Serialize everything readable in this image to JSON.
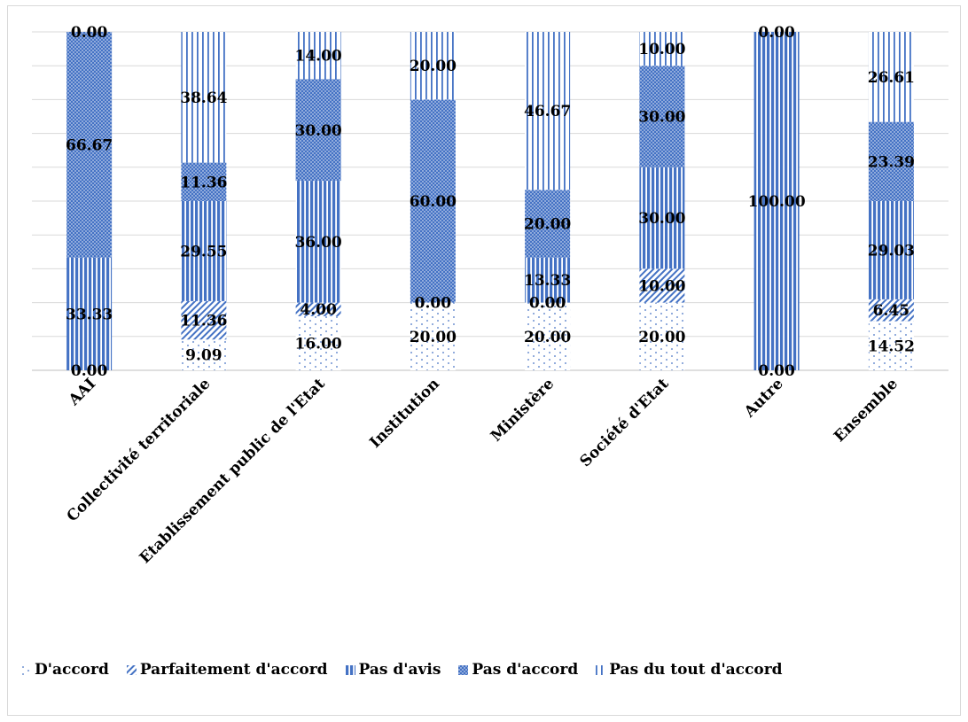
{
  "chart_data": {
    "type": "bar",
    "stacked": true,
    "title": "",
    "xlabel": "",
    "ylabel": "",
    "ylim": [
      0,
      100
    ],
    "grid": true,
    "legend_position": "bottom",
    "categories": [
      "AAI",
      "Collectivité territoriale",
      "Etablissement public de l'Etat",
      "Institution",
      "Ministère",
      "Société d'Etat",
      "Autre",
      "Ensemble"
    ],
    "series": [
      {
        "name": "D'accord",
        "pattern": "dots-sparse",
        "values": [
          0,
          9.09,
          16,
          20,
          20,
          20,
          0,
          14.52
        ],
        "labels": [
          "0.00",
          "9.09",
          "16.00",
          "20.00",
          "20.00",
          "20.00",
          "0.00",
          "14.52"
        ]
      },
      {
        "name": "Parfaitement d'accord",
        "pattern": "diagonal",
        "values": [
          0,
          11.36,
          4,
          0,
          0,
          10,
          0,
          6.45
        ],
        "labels": [
          "",
          "11.36",
          "4.00",
          "0.00",
          "0.00",
          "10.00",
          "",
          "6.45"
        ]
      },
      {
        "name": "Pas d'avis",
        "pattern": "vertical-dense",
        "values": [
          33.33,
          29.55,
          36,
          0,
          13.33,
          30,
          100,
          29.03
        ],
        "labels": [
          "33.33",
          "29.55",
          "36.00",
          "",
          "13.33",
          "30.00",
          "100.00",
          "29.03"
        ]
      },
      {
        "name": "Pas d'accord",
        "pattern": "dots-dense",
        "values": [
          66.67,
          11.36,
          30,
          60,
          20,
          30,
          0,
          23.39
        ],
        "labels": [
          "66.67",
          "11.36",
          "30.00",
          "60.00",
          "20.00",
          "30.00",
          "0.00",
          "23.39"
        ]
      },
      {
        "name": "Pas du tout d'accord",
        "pattern": "vertical-sparse",
        "values": [
          0,
          38.64,
          14,
          20,
          46.67,
          10,
          0,
          26.61
        ],
        "labels": [
          "0.00",
          "38.64",
          "14.00",
          "20.00",
          "46.67",
          "10.00",
          "",
          "26.61"
        ]
      }
    ],
    "colors": {
      "accent": "#4472c4",
      "grid": "#d9d9d9",
      "axis": "#bfbfbf"
    }
  }
}
